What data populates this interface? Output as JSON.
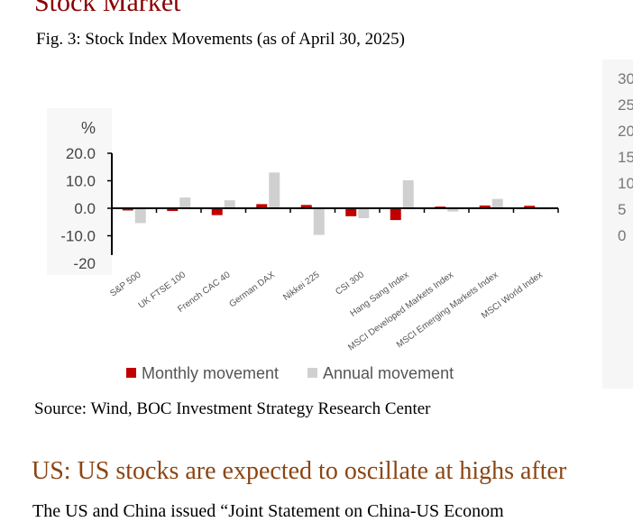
{
  "section_title": "Stock Market",
  "figure_caption": "Fig. 3: Stock Index Movements (as of April 30, 2025)",
  "source": "Source: Wind, BOC Investment Strategy Research Center",
  "subheading": "US: US stocks are expected to oscillate at highs after",
  "body_text": "The US and China issued “Joint Statement on China-US Econom",
  "right_chart_ticks": [
    "30",
    "25",
    "20",
    "15",
    "10",
    "5",
    "0"
  ],
  "colors": {
    "monthly": "#c00000",
    "annual": "#d0d0d0",
    "title": "#8b0000",
    "subheading": "#8b4513"
  },
  "chart_data": {
    "type": "bar",
    "ylabel": "%",
    "yticks": [
      "20.0",
      "10.0",
      "0.0",
      "-10.0",
      "-20"
    ],
    "ylim": [
      -20,
      20
    ],
    "categories": [
      "S&P 500",
      "UK FTSE 100",
      "French CAC 40",
      "German DAX",
      "Nikkei 225",
      "CSI 300",
      "Hang Sang Index",
      "MSCI Developed Markets Index",
      "MSCI Emerging Markets Index",
      "MSCI World Index"
    ],
    "series": [
      {
        "name": "Monthly movement",
        "values": [
          -0.8,
          -1.0,
          -2.5,
          1.5,
          1.2,
          -2.9,
          -4.3,
          0.6,
          1.0,
          0.9
        ]
      },
      {
        "name": "Annual movement",
        "values": [
          -5.4,
          3.9,
          2.9,
          13.0,
          -9.7,
          -3.6,
          10.2,
          -1.2,
          3.4,
          -0.4
        ]
      }
    ]
  }
}
